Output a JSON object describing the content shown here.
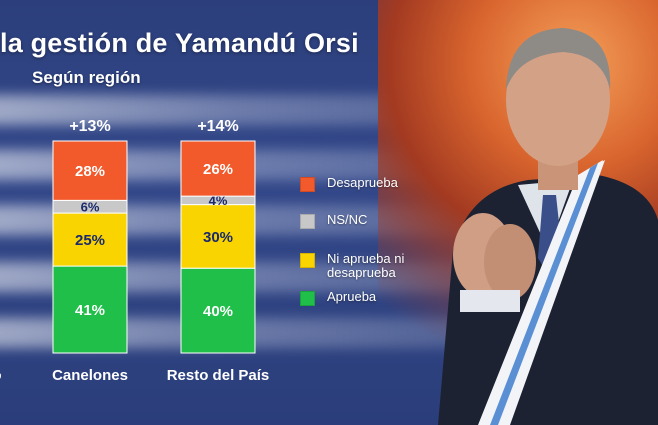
{
  "header": {
    "title": "la gestión de Yamandú Orsi",
    "subtitle": "Según región"
  },
  "chart_data": {
    "type": "bar",
    "stacked": true,
    "categories": [
      "o",
      "Canelones",
      "Resto del País"
    ],
    "series": [
      {
        "name": "Aprueba",
        "color": "#1fbf4a",
        "values": [
          null,
          41,
          40
        ]
      },
      {
        "name": "Ni aprueba ni desaprueba",
        "color": "#f9d400",
        "values": [
          null,
          25,
          30
        ]
      },
      {
        "name": "NS/NC",
        "color": "#c8c8c8",
        "values": [
          null,
          6,
          4
        ]
      },
      {
        "name": "Desaprueba",
        "color": "#f2592b",
        "values": [
          null,
          28,
          26
        ]
      }
    ],
    "net_labels": [
      "",
      "+13%",
      "+14%"
    ],
    "legend_position": "right",
    "legend_order": [
      "Desaprueba",
      "NS/NC",
      "Ni aprueba ni desaprueba",
      "Aprueba"
    ],
    "ylim": [
      0,
      100
    ],
    "grid": false,
    "label_colors": {
      "Aprueba": "#ffffff",
      "Ni aprueba ni desaprueba": "#1a2a6c",
      "NS/NC": "#1a2a6c",
      "Desaprueba": "#ffffff"
    }
  }
}
